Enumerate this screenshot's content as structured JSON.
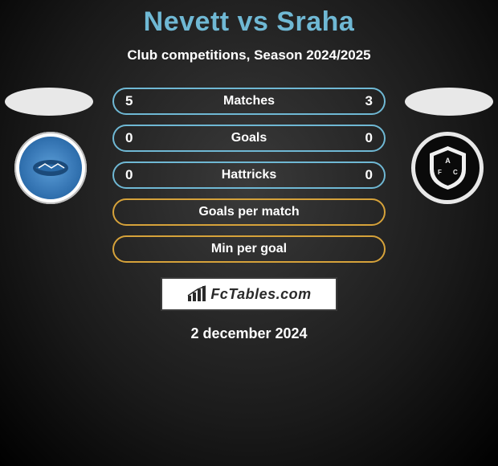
{
  "title": "Nevett vs Sraha",
  "subtitle": "Club competitions, Season 2024/2025",
  "title_color": "#6fb8d4",
  "rows": [
    {
      "label": "Matches",
      "left": "5",
      "right": "3",
      "border": "#6fb8d4"
    },
    {
      "label": "Goals",
      "left": "0",
      "right": "0",
      "border": "#6fb8d4"
    },
    {
      "label": "Hattricks",
      "left": "0",
      "right": "0",
      "border": "#6fb8d4"
    },
    {
      "label": "Goals per match",
      "left": "",
      "right": "",
      "border": "#d6a23a"
    },
    {
      "label": "Min per goal",
      "left": "",
      "right": "",
      "border": "#d6a23a"
    }
  ],
  "footer_site": "FcTables.com",
  "date": "2 december 2024",
  "photo_bg": "#e8e8e8",
  "badge_border": "#3a3a3a"
}
